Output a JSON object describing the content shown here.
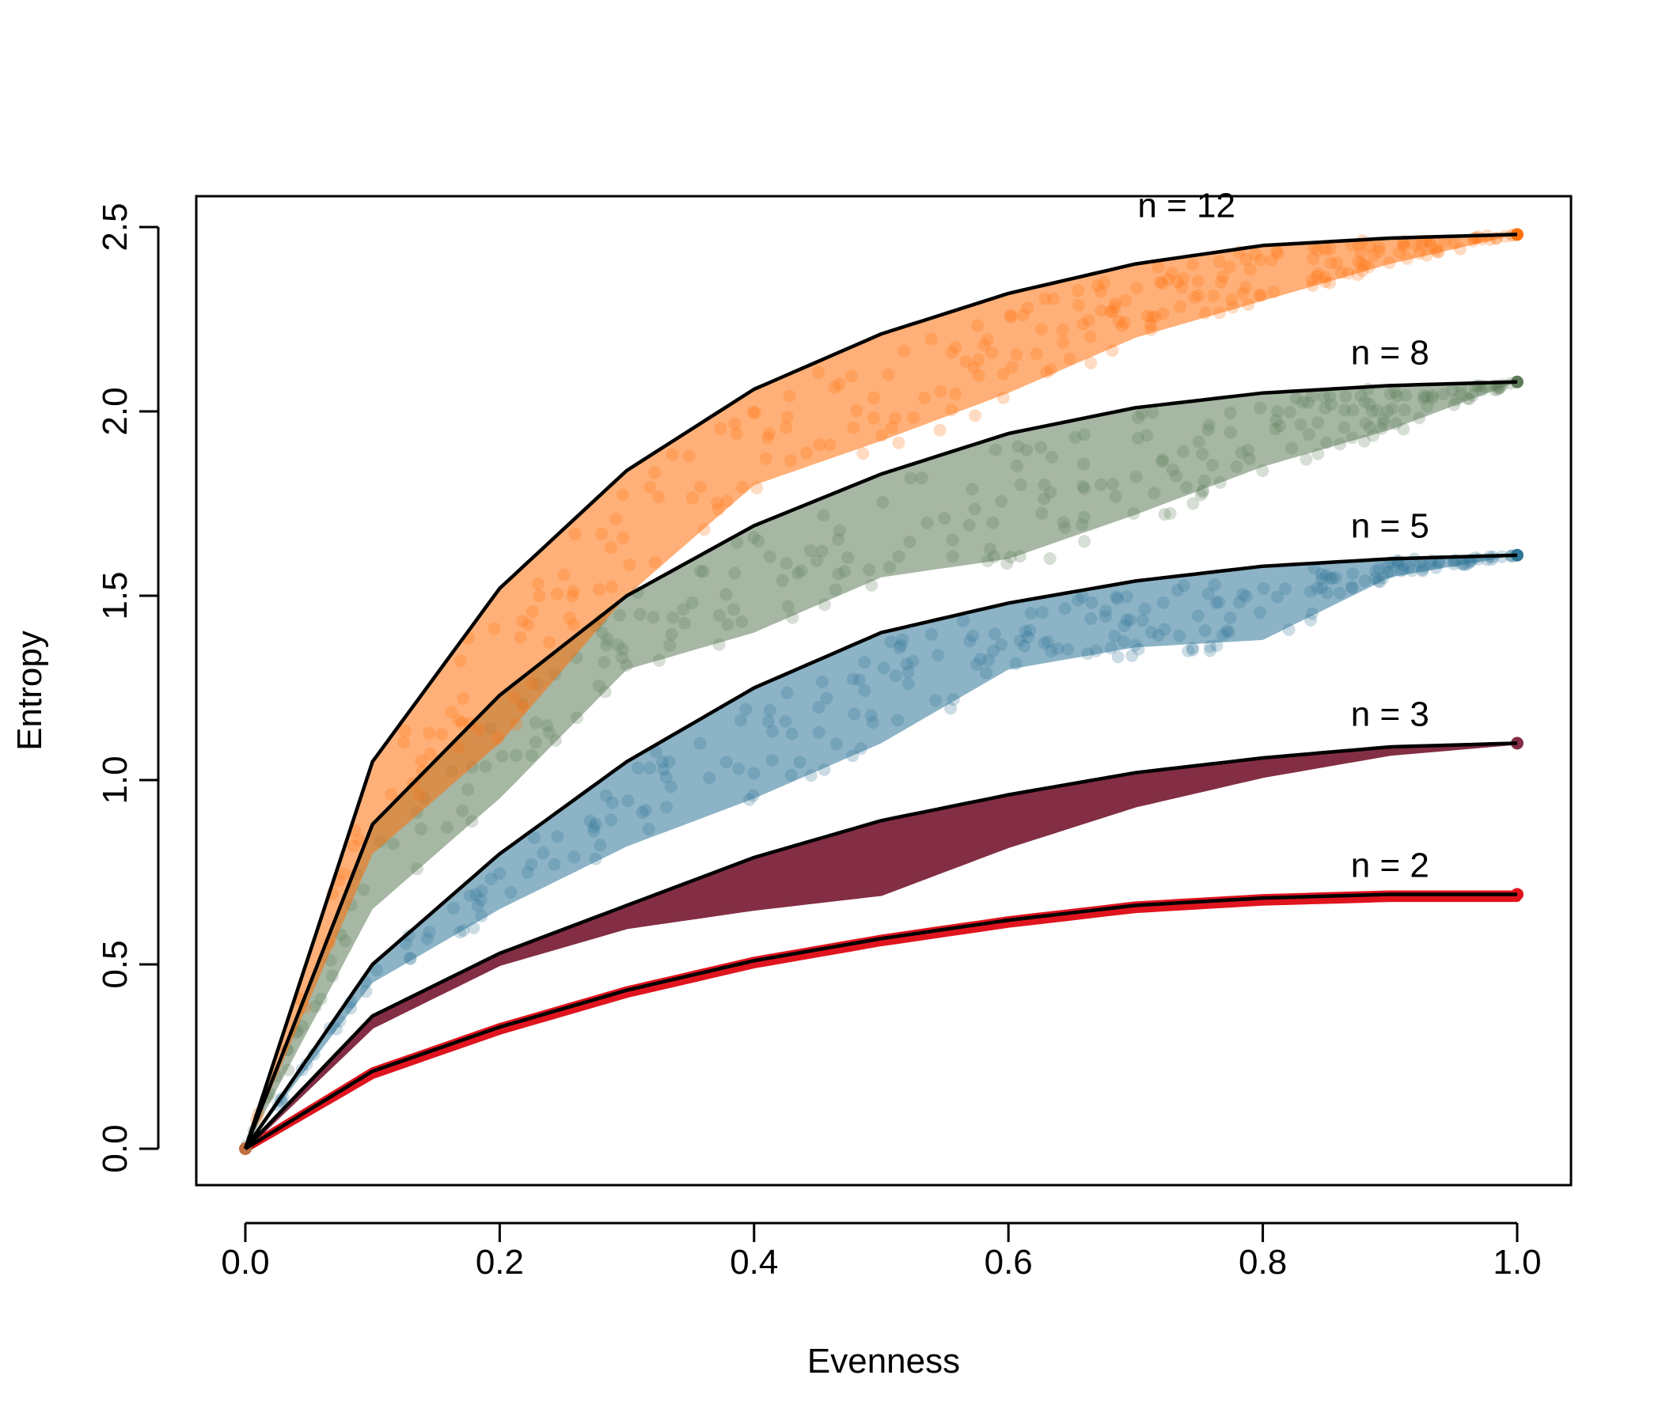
{
  "chart_data": {
    "type": "scatter",
    "title": "",
    "xlabel": "Evenness",
    "ylabel": "Entropy",
    "xlim": [
      0.0,
      1.0
    ],
    "ylim": [
      0.0,
      2.5
    ],
    "xticks": [
      "0.0",
      "0.2",
      "0.4",
      "0.6",
      "0.8",
      "1.0"
    ],
    "yticks": [
      "0.0",
      "0.5",
      "1.0",
      "1.5",
      "2.0",
      "2.5"
    ],
    "grid": false,
    "legend": "none",
    "upper_bound_curve_color": "#000000",
    "series": [
      {
        "label": "n = 2",
        "n": 2,
        "color": "#E0141E",
        "fill": "band",
        "x": [
          0.0,
          0.1,
          0.2,
          0.3,
          0.4,
          0.5,
          0.6,
          0.7,
          0.8,
          0.9,
          1.0
        ],
        "y_max": [
          0.0,
          0.21,
          0.33,
          0.43,
          0.51,
          0.57,
          0.62,
          0.66,
          0.68,
          0.69,
          0.69
        ],
        "y_min": [
          0.0,
          0.2,
          0.32,
          0.42,
          0.5,
          0.56,
          0.61,
          0.65,
          0.67,
          0.68,
          0.68
        ]
      },
      {
        "label": "n = 3",
        "n": 3,
        "color": "#832E44",
        "fill": "band",
        "x": [
          0.0,
          0.1,
          0.2,
          0.3,
          0.4,
          0.5,
          0.6,
          0.7,
          0.8,
          0.9,
          1.0
        ],
        "y_max": [
          0.0,
          0.36,
          0.53,
          0.66,
          0.79,
          0.89,
          0.96,
          1.02,
          1.06,
          1.09,
          1.1
        ],
        "y_min": [
          0.0,
          0.33,
          0.5,
          0.6,
          0.65,
          0.69,
          0.82,
          0.93,
          1.01,
          1.07,
          1.1
        ]
      },
      {
        "label": "n = 5",
        "n": 5,
        "color": "#2E7597",
        "fill": "scatter",
        "x": [
          0.0,
          0.1,
          0.2,
          0.3,
          0.4,
          0.5,
          0.6,
          0.7,
          0.8,
          0.9,
          1.0
        ],
        "y_max": [
          0.0,
          0.5,
          0.8,
          1.05,
          1.25,
          1.4,
          1.48,
          1.54,
          1.58,
          1.6,
          1.61
        ],
        "y_min": [
          0.0,
          0.45,
          0.65,
          0.82,
          0.95,
          1.1,
          1.3,
          1.36,
          1.38,
          1.55,
          1.61
        ]
      },
      {
        "label": "n = 8",
        "n": 8,
        "color": "#5D7B58",
        "fill": "scatter",
        "x": [
          0.0,
          0.1,
          0.2,
          0.3,
          0.4,
          0.5,
          0.6,
          0.7,
          0.8,
          0.9,
          1.0
        ],
        "y_max": [
          0.0,
          0.88,
          1.23,
          1.5,
          1.69,
          1.83,
          1.94,
          2.01,
          2.05,
          2.07,
          2.08
        ],
        "y_min": [
          0.0,
          0.65,
          0.95,
          1.3,
          1.4,
          1.55,
          1.6,
          1.72,
          1.85,
          1.95,
          2.08
        ]
      },
      {
        "label": "n = 12",
        "n": 12,
        "color": "#FF6F0A",
        "fill": "scatter",
        "x": [
          0.0,
          0.1,
          0.2,
          0.3,
          0.4,
          0.5,
          0.6,
          0.7,
          0.8,
          0.9,
          1.0
        ],
        "y_max": [
          0.0,
          1.05,
          1.52,
          1.84,
          2.06,
          2.21,
          2.32,
          2.4,
          2.45,
          2.47,
          2.48
        ],
        "y_min": [
          0.0,
          0.8,
          1.1,
          1.5,
          1.8,
          1.92,
          2.05,
          2.2,
          2.3,
          2.4,
          2.48
        ]
      }
    ]
  }
}
